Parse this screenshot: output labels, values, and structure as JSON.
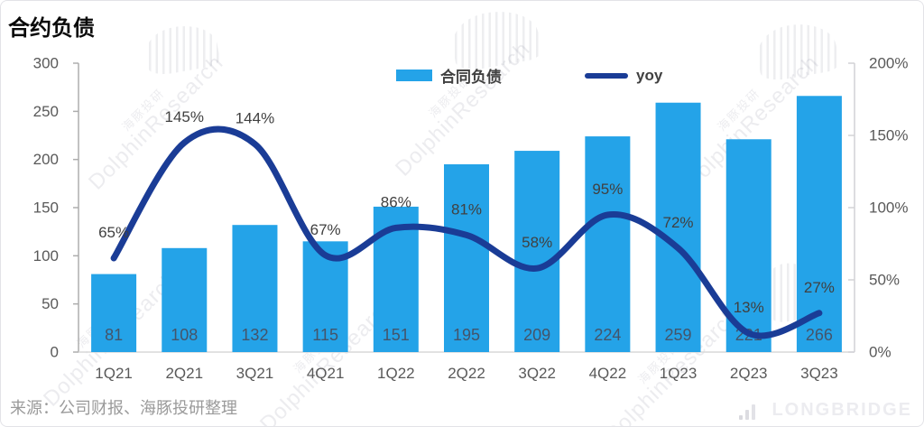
{
  "page": {
    "title": "合约负债",
    "source": "来源：公司财报、海豚投研整理"
  },
  "legend": [
    {
      "label": "合同负债",
      "type": "bar"
    },
    {
      "label": "yoy",
      "type": "line"
    }
  ],
  "colors": {
    "bar": "#24A3E8",
    "line": "#1A3C96",
    "bar_label": "#44546A",
    "pct_label": "#404040",
    "axis_text": "#595959",
    "axis_line": "#ADADAD",
    "axis_line_light": "#D2D2D6",
    "baseline": "#D9D9D9"
  },
  "watermark": {
    "cn": "海豚投研",
    "en": "DolphinResearch"
  },
  "logo": {
    "text": "LONGBRIDGE"
  },
  "chart_data": {
    "type": "bar+line combo",
    "title": "合约负债",
    "categories": [
      "1Q21",
      "2Q21",
      "3Q21",
      "4Q21",
      "1Q22",
      "2Q22",
      "3Q22",
      "4Q22",
      "1Q23",
      "2Q23",
      "3Q23"
    ],
    "series": [
      {
        "name": "合同负债",
        "type": "bar",
        "axis": "left",
        "values": [
          81,
          108,
          132,
          115,
          151,
          195,
          209,
          224,
          259,
          221,
          266
        ]
      },
      {
        "name": "yoy",
        "type": "line",
        "axis": "right",
        "values": [
          65,
          145,
          144,
          67,
          86,
          81,
          58,
          95,
          72,
          13,
          27
        ],
        "labels": [
          "65%",
          "145%",
          "144%",
          "67%",
          "86%",
          "81%",
          "58%",
          "95%",
          "72%",
          "13%",
          "27%"
        ]
      }
    ],
    "left_axis": {
      "min": 0,
      "max": 300,
      "step": 50,
      "ticks": [
        "300",
        "250",
        "200",
        "150",
        "100",
        "50",
        "0"
      ]
    },
    "right_axis": {
      "min": 0,
      "max": 200,
      "step": 50,
      "ticks": [
        "200%",
        "150%",
        "100%",
        "50%",
        "0%"
      ]
    },
    "grid": "off",
    "legend_position": "top-center"
  }
}
